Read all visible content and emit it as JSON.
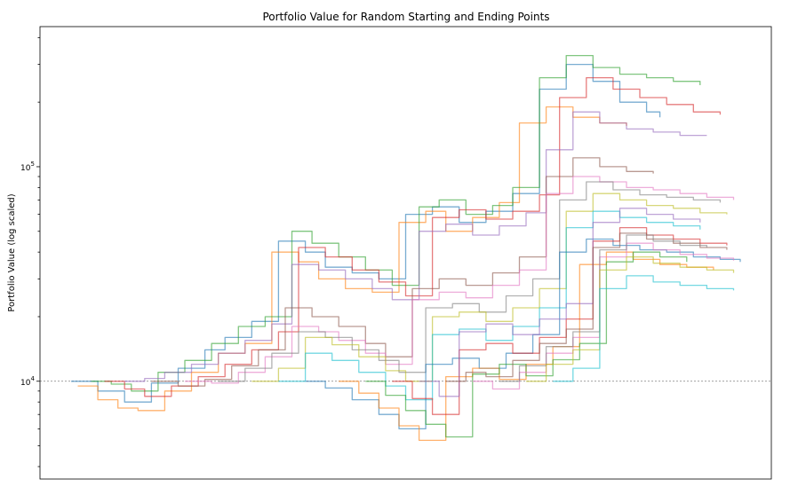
{
  "chart_data": {
    "type": "line",
    "title": "Portfolio Value for Random Starting and Ending Points",
    "xlabel": "",
    "ylabel": "Portfolio Value (log scaled)",
    "yscale": "log",
    "ylim": [
      3500,
      450000
    ],
    "xlim": [
      0,
      100
    ],
    "x_tick_labels_visible": false,
    "y_major_ticks": [
      {
        "value": 10000,
        "base": "10",
        "exp": "4"
      },
      {
        "value": 100000,
        "base": "10",
        "exp": "5"
      }
    ],
    "reference_line": {
      "y": 10000,
      "style": "dotted",
      "color": "#808080"
    },
    "grid": false,
    "legend": "none",
    "palette": [
      "#1f77b4",
      "#ff7f0e",
      "#2ca02c",
      "#d62728",
      "#9467bd",
      "#8c564b",
      "#e377c2",
      "#7f7f7f",
      "#bcbd22",
      "#17becf"
    ],
    "series": [
      {
        "x": [
          0,
          4,
          8,
          12,
          16,
          20,
          23,
          27,
          31,
          35,
          38,
          42,
          46,
          50,
          54,
          58,
          62,
          66,
          70,
          74,
          78,
          82,
          86,
          88
        ],
        "y": [
          10000,
          9000,
          8000,
          9800,
          11500,
          14000,
          16000,
          19000,
          45000,
          40000,
          34000,
          32000,
          30000,
          60000,
          65000,
          55000,
          62000,
          75000,
          230000,
          300000,
          250000,
          200000,
          180000,
          170000
        ]
      },
      {
        "x": [
          1,
          4,
          7,
          10,
          14,
          18,
          22,
          26,
          30,
          34,
          37,
          41,
          45,
          49,
          53,
          56,
          60,
          64,
          67,
          71,
          75,
          79,
          83
        ],
        "y": [
          9500,
          8200,
          7500,
          7300,
          9000,
          11000,
          13500,
          15000,
          40000,
          36000,
          30000,
          27000,
          26000,
          55000,
          62000,
          50000,
          58000,
          68000,
          160000,
          190000,
          170000,
          160000,
          155000
        ]
      },
      {
        "x": [
          3,
          6,
          9,
          13,
          17,
          21,
          25,
          29,
          33,
          36,
          40,
          44,
          48,
          52,
          55,
          59,
          63,
          66,
          70,
          74,
          78,
          82,
          86,
          90,
          94
        ],
        "y": [
          10000,
          9700,
          9000,
          11000,
          12500,
          15000,
          18000,
          20000,
          50000,
          44000,
          38000,
          33000,
          28000,
          65000,
          70000,
          60000,
          66000,
          80000,
          260000,
          330000,
          290000,
          270000,
          260000,
          250000,
          240000
        ]
      },
      {
        "x": [
          5,
          8,
          11,
          15,
          19,
          23,
          27,
          31,
          34,
          38,
          42,
          46,
          50,
          54,
          58,
          62,
          66,
          70,
          73,
          77,
          81,
          85,
          89,
          93,
          97
        ],
        "y": [
          10000,
          9200,
          8500,
          9500,
          10500,
          12000,
          14000,
          17000,
          42000,
          38000,
          33000,
          29000,
          25000,
          58000,
          63000,
          57000,
          62000,
          74000,
          210000,
          260000,
          230000,
          210000,
          195000,
          180000,
          175000
        ]
      },
      {
        "x": [
          8,
          11,
          14,
          18,
          22,
          26,
          30,
          33,
          37,
          41,
          45,
          48,
          52,
          56,
          60,
          64,
          68,
          71,
          75,
          79,
          83,
          87,
          91,
          95
        ],
        "y": [
          10000,
          10300,
          11000,
          12000,
          13500,
          15500,
          18500,
          35000,
          33000,
          30000,
          27000,
          24000,
          50000,
          54000,
          48000,
          53000,
          61000,
          120000,
          180000,
          160000,
          150000,
          145000,
          140000,
          140000
        ]
      },
      {
        "x": [
          12,
          16,
          20,
          24,
          28,
          32,
          36,
          40,
          44,
          47,
          51,
          55,
          59,
          63,
          67,
          71,
          75,
          79,
          83,
          87
        ],
        "y": [
          10000,
          9500,
          10200,
          11800,
          14000,
          22000,
          20000,
          18000,
          15000,
          13000,
          27000,
          30000,
          28000,
          32000,
          38000,
          90000,
          110000,
          100000,
          95000,
          93000
        ]
      },
      {
        "x": [
          17,
          21,
          25,
          29,
          33,
          37,
          40,
          44,
          47,
          51,
          55,
          59,
          63,
          67,
          71,
          75,
          79,
          83,
          87,
          91,
          95,
          99
        ],
        "y": [
          10000,
          9800,
          11000,
          13000,
          18000,
          17000,
          15500,
          13500,
          12000,
          24000,
          26000,
          24500,
          28000,
          33000,
          75000,
          90000,
          85000,
          80000,
          78000,
          75000,
          72000,
          70000
        ]
      },
      {
        "x": [
          22,
          26,
          30,
          34,
          38,
          42,
          46,
          49,
          53,
          57,
          61,
          65,
          69,
          73,
          77,
          81,
          85,
          89,
          93,
          97
        ],
        "y": [
          10000,
          11500,
          13500,
          17000,
          16000,
          14000,
          12500,
          11000,
          22000,
          23000,
          21000,
          25000,
          30000,
          70000,
          85000,
          78000,
          74000,
          72000,
          70000,
          68000
        ]
      },
      {
        "x": [
          27,
          31,
          35,
          39,
          43,
          47,
          50,
          54,
          58,
          62,
          66,
          70,
          74,
          78,
          82,
          86,
          90,
          94,
          98
        ],
        "y": [
          10000,
          11500,
          16000,
          14800,
          13000,
          11200,
          10000,
          20000,
          21000,
          19000,
          22000,
          27000,
          62000,
          75000,
          70000,
          66000,
          64000,
          61000,
          60000
        ]
      },
      {
        "x": [
          31,
          35,
          39,
          43,
          47,
          50,
          54,
          58,
          62,
          66,
          70,
          74,
          78,
          82,
          86,
          90,
          94
        ],
        "y": [
          10000,
          13500,
          12500,
          11000,
          9500,
          8200,
          16500,
          17500,
          15500,
          18000,
          22000,
          52000,
          62000,
          58000,
          55000,
          53000,
          51000
        ]
      },
      {
        "x": [
          35,
          38,
          42,
          46,
          49,
          53,
          57,
          61,
          65,
          69,
          73,
          77,
          81,
          85,
          89,
          93,
          97,
          100
        ],
        "y": [
          10000,
          9300,
          8200,
          7000,
          6000,
          12000,
          12800,
          11500,
          13500,
          16500,
          40000,
          46000,
          43000,
          41000,
          40000,
          38000,
          37000,
          36000
        ]
      },
      {
        "x": [
          40,
          43,
          46,
          49,
          52,
          56,
          60,
          64,
          68,
          72,
          76,
          80,
          84,
          88,
          92,
          96
        ],
        "y": [
          10000,
          8800,
          7500,
          6200,
          5300,
          10500,
          11500,
          10200,
          12000,
          14500,
          35000,
          40000,
          37000,
          35000,
          34000,
          33000
        ]
      },
      {
        "x": [
          44,
          47,
          50,
          53,
          56,
          60,
          64,
          68,
          72,
          76,
          80,
          84,
          88,
          92
        ],
        "y": [
          10000,
          8600,
          7300,
          6300,
          5500,
          10800,
          12000,
          10600,
          12600,
          15000,
          36000,
          40000,
          38000,
          36000
        ]
      },
      {
        "x": [
          48,
          51,
          54,
          58,
          62,
          66,
          70,
          74,
          78,
          82,
          86,
          90,
          94,
          98
        ],
        "y": [
          10000,
          8300,
          7000,
          14000,
          15000,
          13500,
          16000,
          19500,
          45000,
          52000,
          48000,
          46000,
          44000,
          43000
        ]
      },
      {
        "x": [
          52,
          55,
          58,
          62,
          66,
          70,
          74,
          78,
          82,
          86,
          90,
          94
        ],
        "y": [
          10000,
          8500,
          17000,
          18500,
          16500,
          19500,
          23000,
          55000,
          64000,
          60000,
          57000,
          55000
        ]
      },
      {
        "x": [
          56,
          59,
          62,
          66,
          70,
          74,
          78,
          82,
          86,
          90,
          94,
          98
        ],
        "y": [
          10000,
          11000,
          10500,
          12500,
          15000,
          17500,
          42000,
          49000,
          46000,
          44000,
          42000,
          41000
        ]
      },
      {
        "x": [
          60,
          63,
          67,
          71,
          75,
          79,
          83,
          87,
          91,
          95,
          99
        ],
        "y": [
          10000,
          9200,
          11000,
          13500,
          16000,
          38000,
          44000,
          41000,
          39000,
          37500,
          36500
        ]
      },
      {
        "x": [
          64,
          67,
          71,
          75,
          79,
          83,
          87,
          91,
          95
        ],
        "y": [
          10000,
          11800,
          14500,
          17000,
          41000,
          48000,
          45000,
          43000,
          42000
        ]
      },
      {
        "x": [
          68,
          71,
          75,
          79,
          83,
          87,
          91,
          95,
          99
        ],
        "y": [
          10000,
          12000,
          14000,
          33000,
          38000,
          35500,
          34000,
          33000,
          32000
        ]
      },
      {
        "x": [
          72,
          75,
          79,
          83,
          87,
          91,
          95,
          99
        ],
        "y": [
          10000,
          11500,
          27000,
          31000,
          29000,
          28000,
          27000,
          26500
        ]
      }
    ]
  }
}
